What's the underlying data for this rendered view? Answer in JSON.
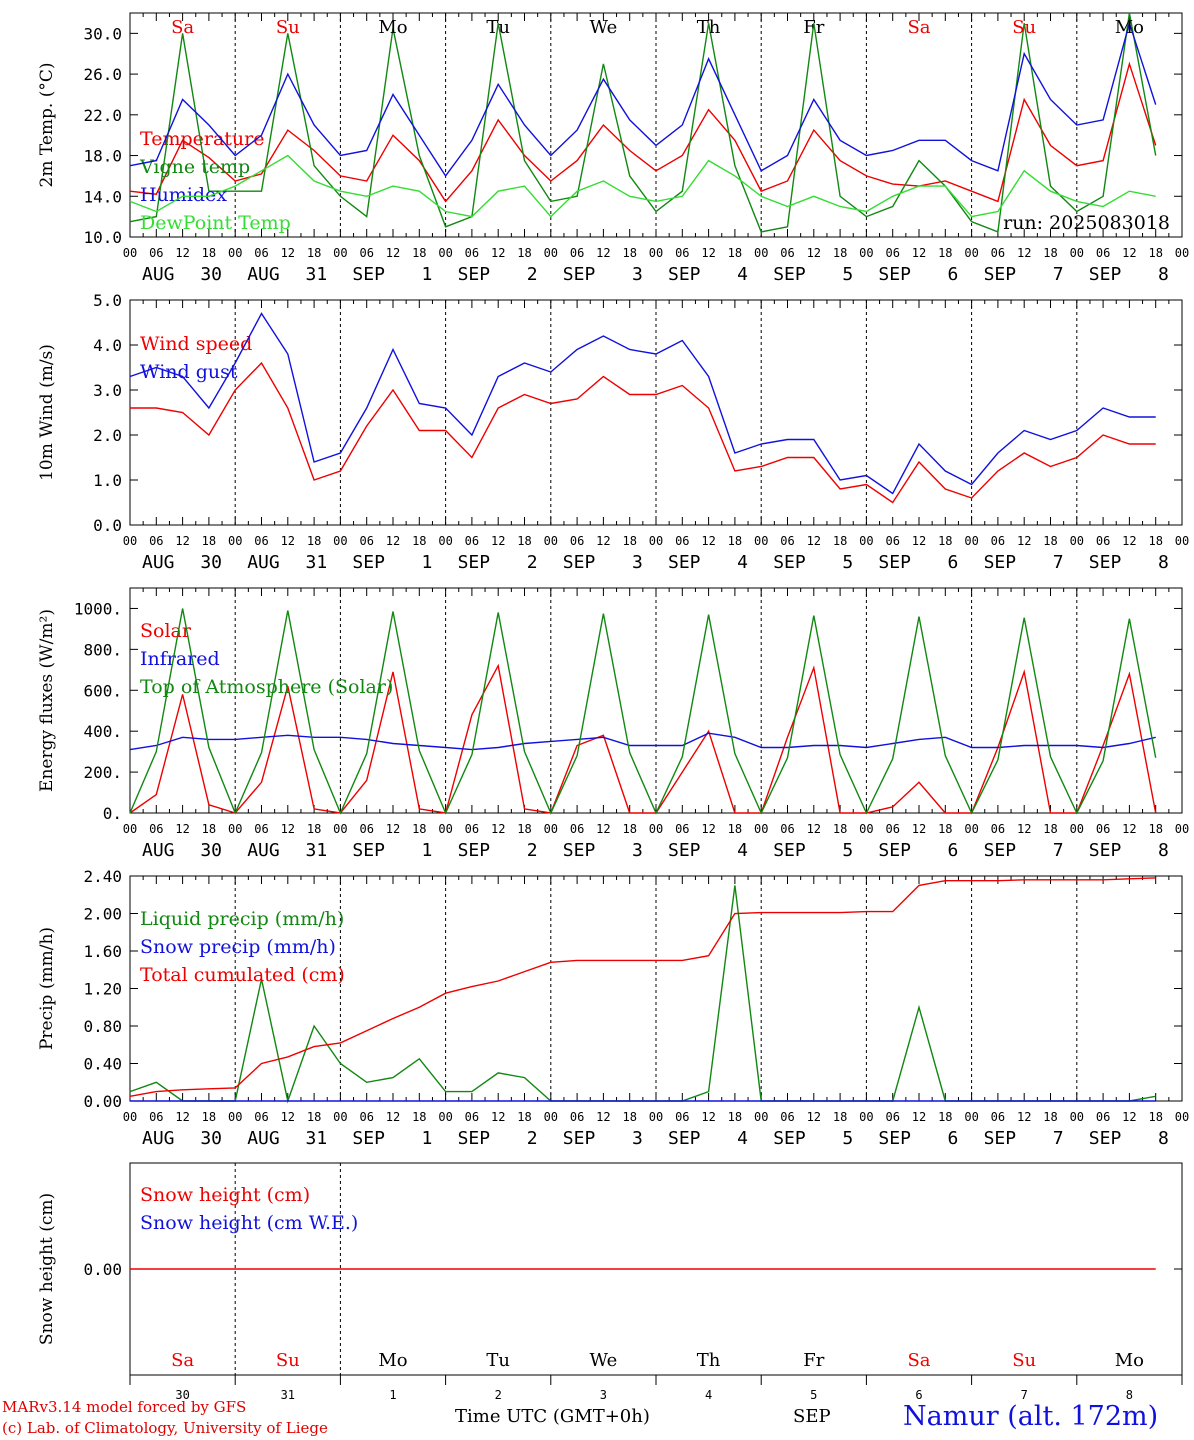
{
  "colors": {
    "red": "#ee0000",
    "green": "#118811",
    "blue": "#1111dd",
    "lightgreen": "#33dd33",
    "weekend": "#ee0000",
    "weekday": "#000000"
  },
  "hour_ticks": [
    "00",
    "06",
    "12",
    "18"
  ],
  "dates": [
    {
      "mon": "AUG",
      "day": "30"
    },
    {
      "mon": "AUG",
      "day": "31"
    },
    {
      "mon": "SEP",
      "day": "1"
    },
    {
      "mon": "SEP",
      "day": "2"
    },
    {
      "mon": "SEP",
      "day": "3"
    },
    {
      "mon": "SEP",
      "day": "4"
    },
    {
      "mon": "SEP",
      "day": "5"
    },
    {
      "mon": "SEP",
      "day": "6"
    },
    {
      "mon": "SEP",
      "day": "7"
    },
    {
      "mon": "SEP",
      "day": "8"
    }
  ],
  "weekdays": [
    {
      "label": "Sa",
      "weekend": true
    },
    {
      "label": "Su",
      "weekend": true
    },
    {
      "label": "Mo",
      "weekend": false
    },
    {
      "label": "Tu",
      "weekend": false
    },
    {
      "label": "We",
      "weekend": false
    },
    {
      "label": "Th",
      "weekend": false
    },
    {
      "label": "Fr",
      "weekend": false
    },
    {
      "label": "Sa",
      "weekend": true
    },
    {
      "label": "Su",
      "weekend": true
    },
    {
      "label": "Mo",
      "weekend": false
    }
  ],
  "run_label": "run: 2025083018",
  "footer": {
    "model": "MARv3.14 model forced by GFS",
    "credit": "(c) Lab. of Climatology, University of Liege",
    "time_axis": "Time UTC (GMT+0h)",
    "month": "SEP",
    "day_numbers": [
      "30",
      "31",
      "1",
      "2",
      "3",
      "4",
      "5",
      "6",
      "7",
      "8"
    ],
    "location": "Namur (alt. 172m)"
  },
  "chart_data": [
    {
      "type": "line",
      "ylabel": "2m Temp. (°C)",
      "ylim": [
        10,
        32
      ],
      "yticks": [
        "10.0",
        "14.0",
        "18.0",
        "22.0",
        "26.0",
        "30.0"
      ],
      "x": "hours since AUG 30 00 UTC, every 6h",
      "series": [
        {
          "name": "Temperature",
          "color": "red",
          "values": [
            14.5,
            14.2,
            19.5,
            17.8,
            15.5,
            16.2,
            20.5,
            18.5,
            16.0,
            15.5,
            20.0,
            17.5,
            13.5,
            16.5,
            21.5,
            18.0,
            15.5,
            17.5,
            21.0,
            18.5,
            16.5,
            18.0,
            22.5,
            19.5,
            14.5,
            15.5,
            20.5,
            17.5,
            16.0,
            15.2,
            15.0,
            15.5,
            14.5,
            13.5,
            23.5,
            19.0,
            17.0,
            17.5,
            27.0,
            19.0
          ]
        },
        {
          "name": "Vigne temp",
          "color": "green",
          "values": [
            11.5,
            12.0,
            30.0,
            14.5,
            14.5,
            14.5,
            30.0,
            17.0,
            14.0,
            12.0,
            30.5,
            18.0,
            11.0,
            12.0,
            31.0,
            17.5,
            13.5,
            14.0,
            27.0,
            16.0,
            12.5,
            14.5,
            31.0,
            17.0,
            10.5,
            11.0,
            31.0,
            14.0,
            12.0,
            13.0,
            17.5,
            15.0,
            11.5,
            10.5,
            31.0,
            15.0,
            12.5,
            14.0,
            32.0,
            18.0
          ]
        },
        {
          "name": "Humidex",
          "color": "blue",
          "values": [
            17.0,
            17.5,
            23.5,
            21.0,
            18.0,
            20.0,
            26.0,
            21.0,
            18.0,
            18.5,
            24.0,
            20.0,
            16.0,
            19.5,
            25.0,
            21.0,
            18.0,
            20.5,
            25.5,
            21.5,
            19.0,
            21.0,
            27.5,
            22.0,
            16.5,
            18.0,
            23.5,
            19.5,
            18.0,
            18.5,
            19.5,
            19.5,
            17.5,
            16.5,
            28.0,
            23.5,
            21.0,
            21.5,
            31.0,
            23.0
          ]
        },
        {
          "name": "DewPoint Temp",
          "color": "lightgreen",
          "values": [
            13.5,
            12.5,
            14.0,
            14.0,
            15.0,
            16.5,
            18.0,
            15.5,
            14.5,
            14.0,
            15.0,
            14.5,
            12.5,
            12.0,
            14.5,
            15.0,
            12.0,
            14.5,
            15.5,
            14.0,
            13.5,
            14.0,
            17.5,
            16.0,
            14.0,
            13.0,
            14.0,
            13.0,
            12.5,
            14.0,
            15.0,
            15.0,
            12.0,
            12.5,
            16.5,
            14.5,
            13.5,
            13.0,
            14.5,
            14.0
          ]
        }
      ]
    },
    {
      "type": "line",
      "ylabel": "10m Wind (m/s)",
      "ylim": [
        0,
        5
      ],
      "yticks": [
        "0.0",
        "1.0",
        "2.0",
        "3.0",
        "4.0",
        "5.0"
      ],
      "series": [
        {
          "name": "Wind speed",
          "color": "red",
          "values": [
            2.6,
            2.6,
            2.5,
            2.0,
            3.0,
            3.6,
            2.6,
            1.0,
            1.2,
            2.2,
            3.0,
            2.1,
            2.1,
            1.5,
            2.6,
            2.9,
            2.7,
            2.8,
            3.3,
            2.9,
            2.9,
            3.1,
            2.6,
            1.2,
            1.3,
            1.5,
            1.5,
            0.8,
            0.9,
            0.5,
            1.4,
            0.8,
            0.6,
            1.2,
            1.6,
            1.3,
            1.5,
            2.0,
            1.8,
            1.8
          ]
        },
        {
          "name": "Wind gust",
          "color": "blue",
          "values": [
            3.3,
            3.5,
            3.3,
            2.6,
            3.6,
            4.7,
            3.8,
            1.4,
            1.6,
            2.6,
            3.9,
            2.7,
            2.6,
            2.0,
            3.3,
            3.6,
            3.4,
            3.9,
            4.2,
            3.9,
            3.8,
            4.1,
            3.3,
            1.6,
            1.8,
            1.9,
            1.9,
            1.0,
            1.1,
            0.7,
            1.8,
            1.2,
            0.9,
            1.6,
            2.1,
            1.9,
            2.1,
            2.6,
            2.4,
            2.4
          ]
        }
      ]
    },
    {
      "type": "line",
      "ylabel": "Energy fluxes (W/m²)",
      "ylim": [
        0,
        1100
      ],
      "yticks": [
        "0.",
        "200.",
        "400.",
        "600.",
        "800.",
        "1000."
      ],
      "series": [
        {
          "name": "Solar",
          "color": "red",
          "values": [
            0,
            90,
            580,
            40,
            0,
            150,
            620,
            20,
            0,
            160,
            690,
            20,
            0,
            480,
            720,
            20,
            0,
            330,
            380,
            0,
            0,
            200,
            400,
            0,
            0,
            370,
            710,
            0,
            0,
            30,
            150,
            0,
            0,
            320,
            690,
            0,
            0,
            330,
            680,
            0
          ]
        },
        {
          "name": "Infrared",
          "color": "blue",
          "values": [
            310,
            330,
            370,
            360,
            360,
            370,
            380,
            370,
            370,
            360,
            340,
            330,
            320,
            310,
            320,
            340,
            350,
            360,
            370,
            330,
            330,
            330,
            390,
            370,
            320,
            320,
            330,
            330,
            320,
            340,
            360,
            370,
            320,
            320,
            330,
            330,
            330,
            320,
            340,
            370
          ]
        },
        {
          "name": "Top of Atmosphere (Solar)",
          "color": "green",
          "values": [
            0,
            300,
            1000,
            320,
            0,
            295,
            990,
            310,
            0,
            290,
            985,
            305,
            0,
            285,
            980,
            300,
            0,
            280,
            975,
            295,
            0,
            275,
            970,
            290,
            0,
            270,
            965,
            285,
            0,
            265,
            960,
            280,
            0,
            260,
            955,
            275,
            0,
            255,
            950,
            270
          ]
        }
      ]
    },
    {
      "type": "line",
      "ylabel": "Precip (mm/h)",
      "ylim": [
        0,
        2.4
      ],
      "yticks": [
        "0.00",
        "0.40",
        "0.80",
        "1.20",
        "1.60",
        "2.00",
        "2.40"
      ],
      "series": [
        {
          "name": "Liquid precip (mm/h)",
          "color": "green",
          "values": [
            0.1,
            0.2,
            0,
            0,
            0,
            1.3,
            0,
            0.8,
            0.4,
            0.2,
            0.25,
            0.45,
            0.1,
            0.1,
            0.3,
            0.25,
            0,
            0,
            0,
            0,
            0,
            0,
            0.1,
            2.3,
            0,
            0,
            0,
            0,
            0,
            0,
            1.0,
            0,
            0,
            0,
            0,
            0,
            0,
            0,
            0,
            0.05
          ]
        },
        {
          "name": "Snow precip (mm/h)",
          "color": "blue",
          "values": [
            0,
            0,
            0,
            0,
            0,
            0,
            0,
            0,
            0,
            0,
            0,
            0,
            0,
            0,
            0,
            0,
            0,
            0,
            0,
            0,
            0,
            0,
            0,
            0,
            0,
            0,
            0,
            0,
            0,
            0,
            0,
            0,
            0,
            0,
            0,
            0,
            0,
            0,
            0,
            0
          ]
        },
        {
          "name": "Total cumulated (cm)",
          "color": "red",
          "values": [
            0.05,
            0.1,
            0.12,
            0.13,
            0.14,
            0.4,
            0.47,
            0.58,
            0.62,
            0.75,
            0.88,
            1.0,
            1.15,
            1.22,
            1.28,
            1.38,
            1.48,
            1.5,
            1.5,
            1.5,
            1.5,
            1.5,
            1.55,
            2.0,
            2.01,
            2.01,
            2.01,
            2.01,
            2.02,
            2.02,
            2.3,
            2.35,
            2.35,
            2.35,
            2.36,
            2.36,
            2.36,
            2.36,
            2.37,
            2.38
          ]
        }
      ]
    },
    {
      "type": "line",
      "ylabel": "Snow height (cm)",
      "ylim": [
        -1,
        1
      ],
      "yticks": [
        "0.00"
      ],
      "series": [
        {
          "name": "Snow height (cm)",
          "color": "red",
          "values": [
            0,
            0,
            0,
            0,
            0,
            0,
            0,
            0,
            0,
            0,
            0,
            0,
            0,
            0,
            0,
            0,
            0,
            0,
            0,
            0,
            0,
            0,
            0,
            0,
            0,
            0,
            0,
            0,
            0,
            0,
            0,
            0,
            0,
            0,
            0,
            0,
            0,
            0,
            0,
            0
          ]
        },
        {
          "name": "Snow height (cm W.E.)",
          "color": "blue",
          "values": []
        }
      ]
    }
  ]
}
